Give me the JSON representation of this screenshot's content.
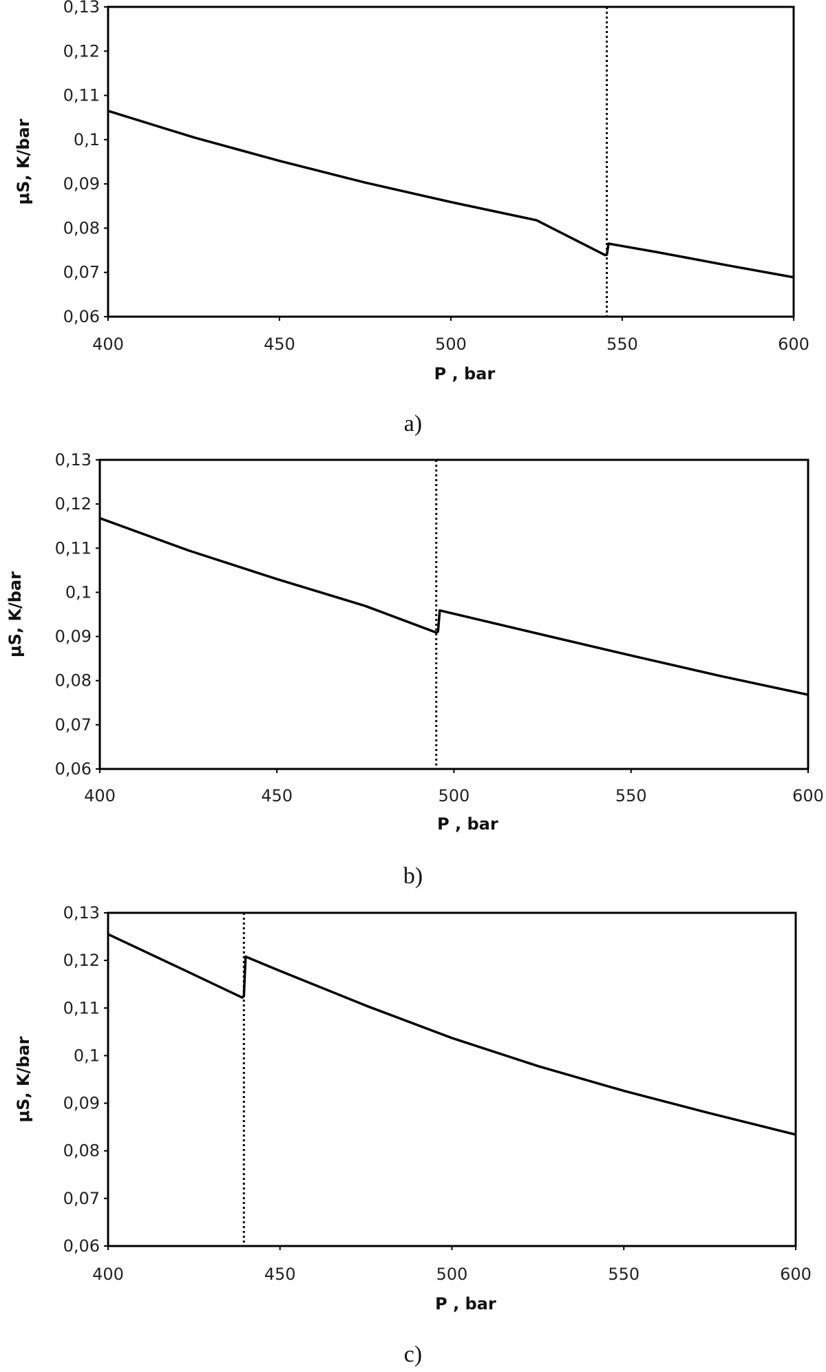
{
  "colors": {
    "line": "#000000",
    "frame": "#000000",
    "text": "#222222"
  },
  "chart_data": [
    {
      "type": "line",
      "panel_label": "a)",
      "xlabel": "P  , bar",
      "ylabel": "μS, K/bar",
      "xlim": [
        400,
        600
      ],
      "ylim": [
        0.06,
        0.13
      ],
      "xticks": [
        400,
        450,
        500,
        550,
        600
      ],
      "xtick_labels": [
        "400",
        "450",
        "500",
        "550",
        "600"
      ],
      "yticks": [
        0.06,
        0.07,
        0.08,
        0.09,
        0.1,
        0.11,
        0.12,
        0.13
      ],
      "ytick_labels": [
        "0,06",
        "0,07",
        "0,08",
        "0,09",
        "0,1",
        "0,11",
        "0,12",
        "0,13"
      ],
      "grid": false,
      "vertical_marker": {
        "x": 545.5,
        "style": "dotted"
      },
      "series": [
        {
          "x": [
            400,
            425,
            450,
            475,
            500,
            525,
            545,
            545.5,
            546,
            560,
            580,
            600
          ],
          "values": [
            0.1065,
            0.1005,
            0.0952,
            0.0903,
            0.0859,
            0.0818,
            0.0739,
            0.074,
            0.0765,
            0.0746,
            0.0717,
            0.0689
          ]
        }
      ]
    },
    {
      "type": "line",
      "panel_label": "b)",
      "xlabel": "P  , bar",
      "ylabel": "μS, K/bar",
      "xlim": [
        400,
        600
      ],
      "ylim": [
        0.06,
        0.13
      ],
      "xticks": [
        400,
        450,
        500,
        550,
        600
      ],
      "xtick_labels": [
        "400",
        "450",
        "500",
        "550",
        "600"
      ],
      "yticks": [
        0.06,
        0.07,
        0.08,
        0.09,
        0.1,
        0.11,
        0.12,
        0.13
      ],
      "ytick_labels": [
        "0,06",
        "0,07",
        "0,08",
        "0,09",
        "0,1",
        "0,11",
        "0,12",
        "0,13"
      ],
      "grid": false,
      "vertical_marker": {
        "x": 495,
        "style": "dotted"
      },
      "series": [
        {
          "x": [
            400,
            425,
            450,
            475,
            495,
            495.5,
            496,
            525,
            550,
            575,
            600
          ],
          "values": [
            0.1168,
            0.1095,
            0.103,
            0.0969,
            0.0909,
            0.0911,
            0.0959,
            0.0904,
            0.0857,
            0.0811,
            0.0768
          ]
        }
      ]
    },
    {
      "type": "line",
      "panel_label": "c)",
      "xlabel": "P  , bar",
      "ylabel": "μS, K/bar",
      "xlim": [
        400,
        600
      ],
      "ylim": [
        0.06,
        0.13
      ],
      "xticks": [
        400,
        450,
        500,
        550,
        600
      ],
      "xtick_labels": [
        "400",
        "450",
        "500",
        "550",
        "600"
      ],
      "yticks": [
        0.06,
        0.07,
        0.08,
        0.09,
        0.1,
        0.11,
        0.12,
        0.13
      ],
      "ytick_labels": [
        "0,06",
        "0,07",
        "0,08",
        "0,09",
        "0,1",
        "0,11",
        "0,12",
        "0,13"
      ],
      "grid": false,
      "vertical_marker": {
        "x": 439.5,
        "style": "dotted"
      },
      "series": [
        {
          "x": [
            400,
            420,
            439,
            439.5,
            440,
            450,
            475,
            500,
            525,
            550,
            575,
            600
          ],
          "values": [
            0.1255,
            0.1187,
            0.1122,
            0.1125,
            0.1208,
            0.1178,
            0.1105,
            0.1037,
            0.0978,
            0.0926,
            0.0879,
            0.0834
          ]
        }
      ]
    }
  ]
}
